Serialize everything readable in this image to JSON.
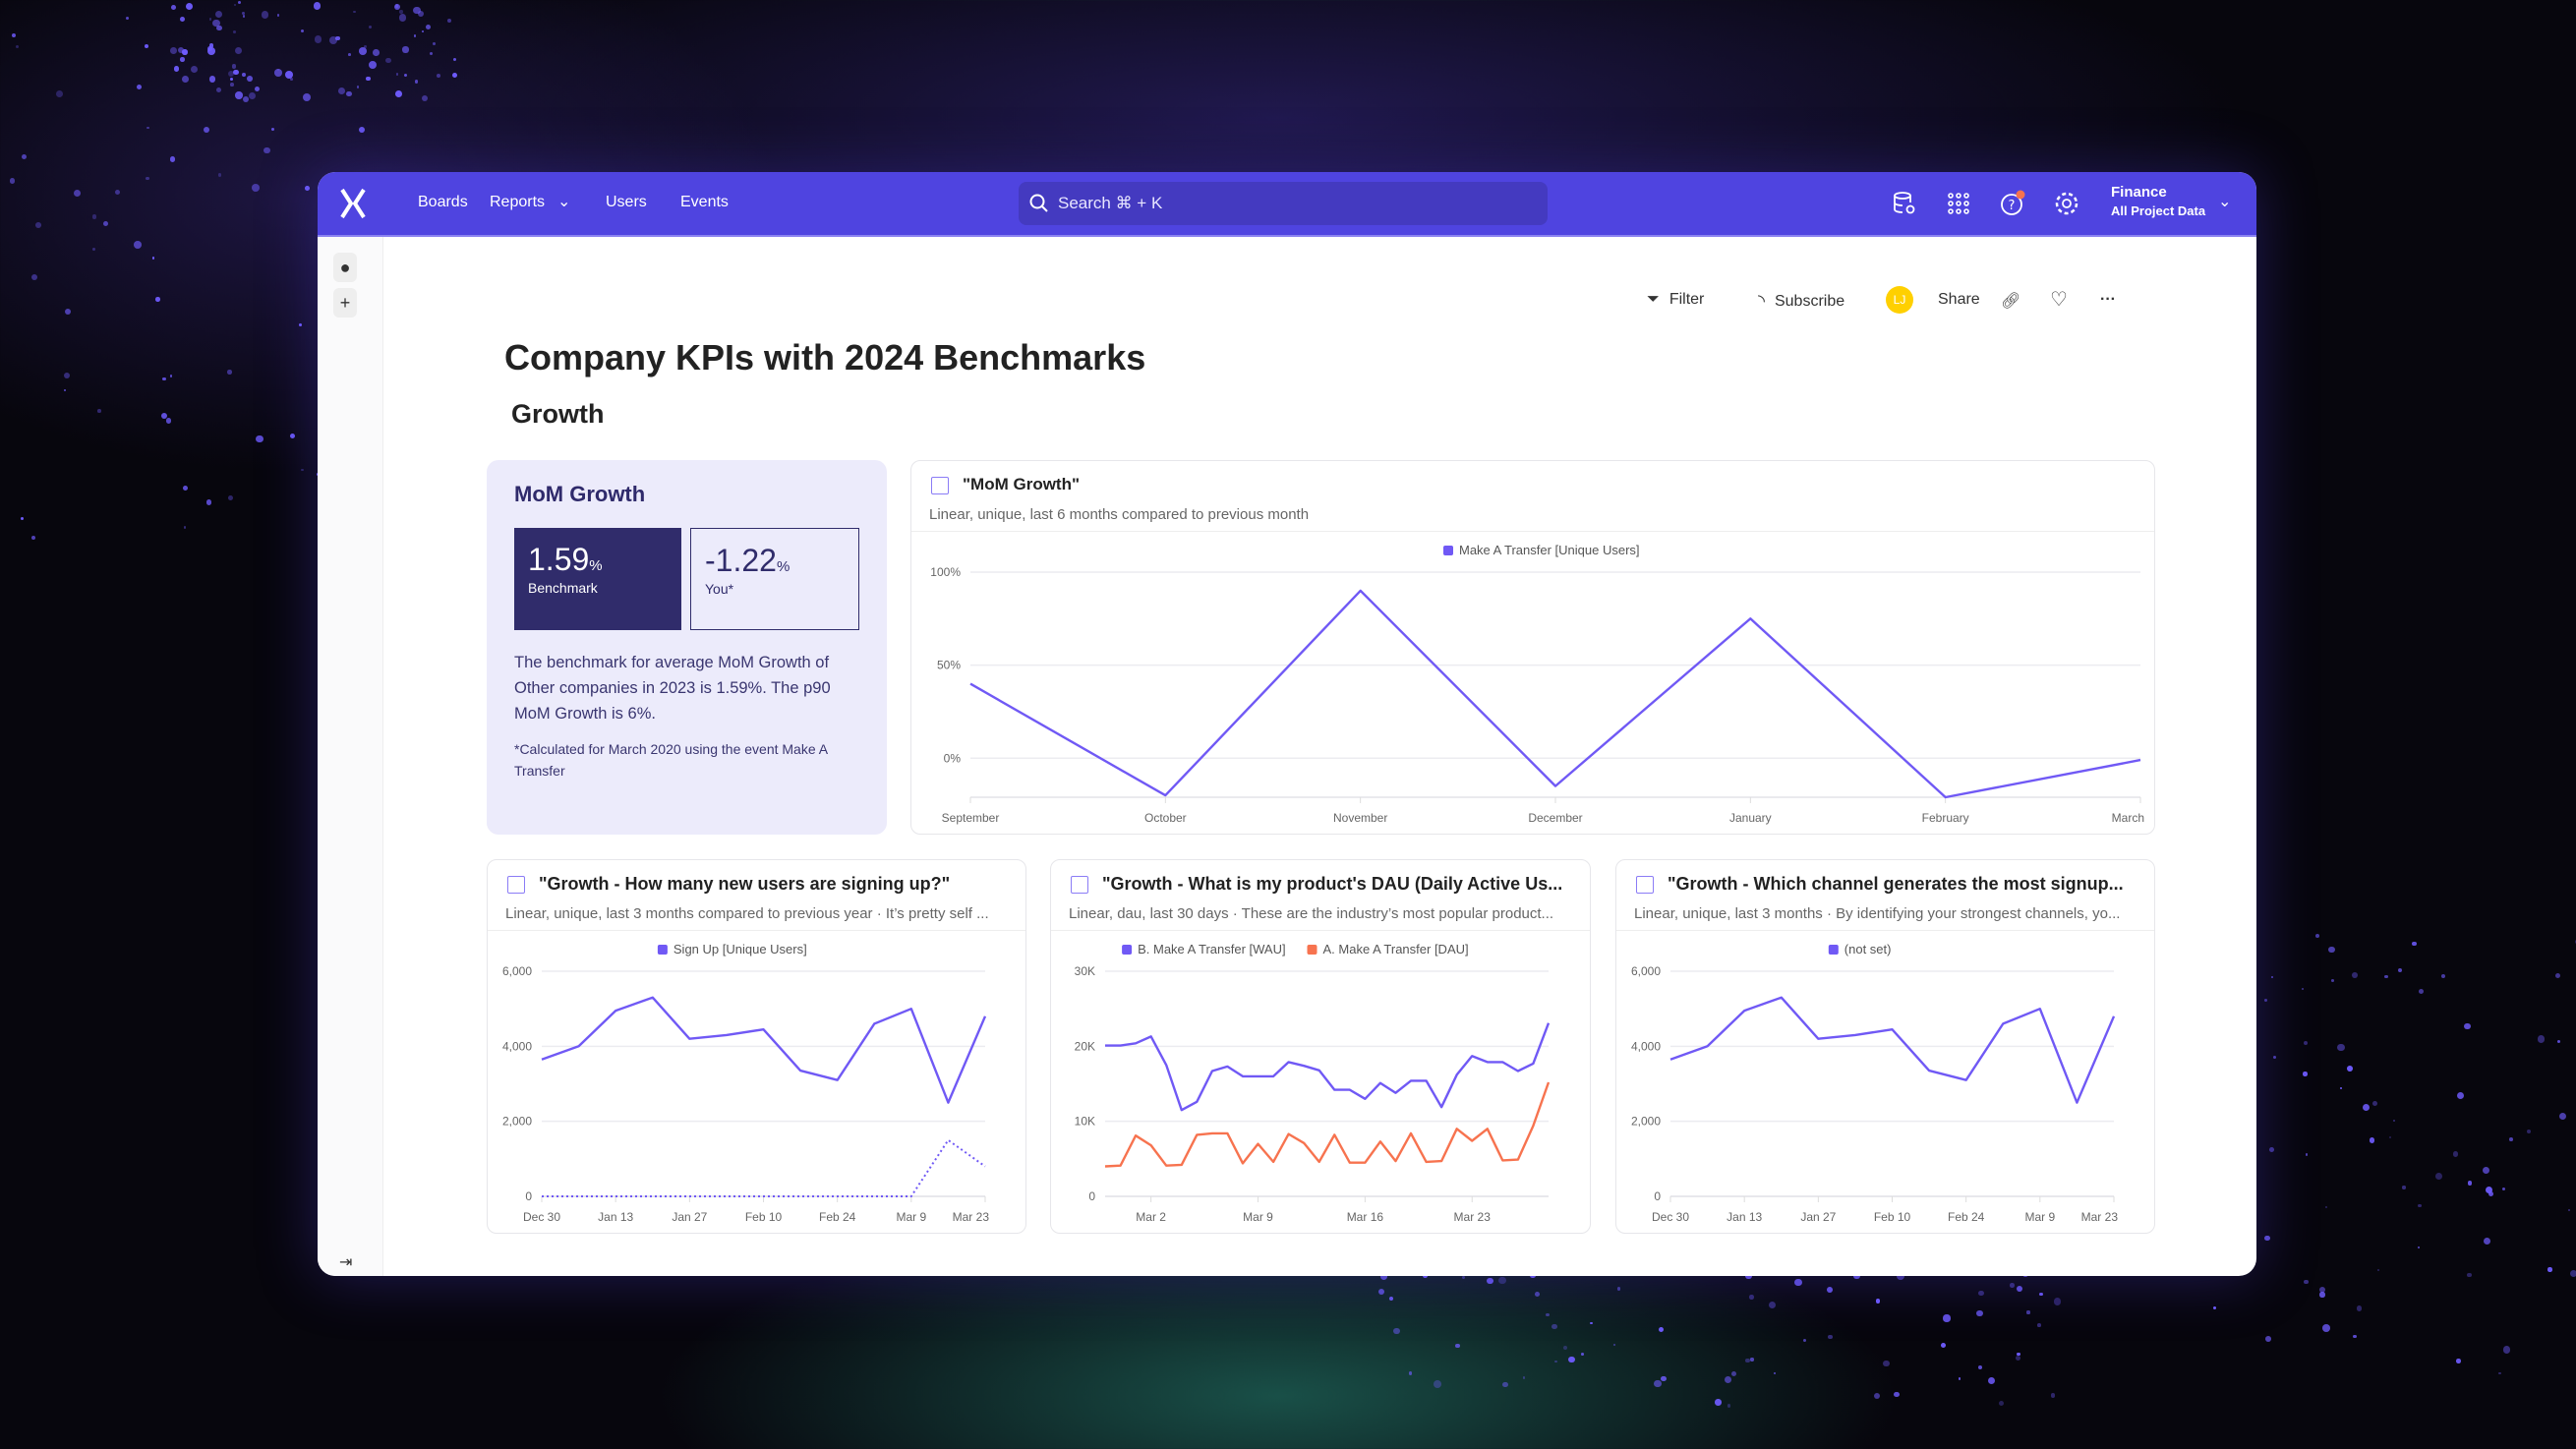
{
  "topbar": {
    "logo": "mixpanel-logo",
    "nav": [
      "Boards",
      "Reports",
      "Users",
      "Events"
    ],
    "search_placeholder": "Search ⌘ + K",
    "project_name": "Finance",
    "project_scope": "All Project Data",
    "accent": "#4f44e0"
  },
  "toolbar": {
    "filter": "Filter",
    "subscribe": "Subscribe",
    "avatar_initials": "LJ",
    "share": "Share"
  },
  "page": {
    "title": "Company KPIs with 2024 Benchmarks",
    "section": "Growth"
  },
  "benchmark_card": {
    "title": "MoM Growth",
    "benchmark_value": "1.59",
    "benchmark_unit": "%",
    "benchmark_label": "Benchmark",
    "you_value": "-1.22",
    "you_unit": "%",
    "you_label": "You*",
    "description": "The benchmark for average MoM Growth of Other companies in 2023 is 1.59%. The p90 MoM Growth is 6%.",
    "footnote": "*Calculated for March 2020 using the event Make A Transfer"
  },
  "chart_data": [
    {
      "id": "mom",
      "type": "line",
      "title": "\"MoM Growth\"",
      "subtitle": "Linear, unique, last 6 months compared to previous month",
      "x": [
        "September",
        "October",
        "November",
        "December",
        "January",
        "February",
        "March"
      ],
      "xticks": [
        "September",
        "October",
        "November",
        "December",
        "January",
        "February",
        "March"
      ],
      "yticks": [
        0,
        50,
        100
      ],
      "ytick_labels": [
        "0%",
        "50%",
        "100%"
      ],
      "ylim": [
        -21,
        100
      ],
      "grid": true,
      "legend": "top",
      "series": [
        {
          "name": "Make A Transfer [Unique Users]",
          "color": "#7059f5",
          "values": [
            40,
            -20,
            90,
            -15,
            75,
            -21,
            -1
          ]
        }
      ]
    },
    {
      "id": "signup",
      "type": "line",
      "title": "\"Growth - How many new users are signing up?\"",
      "subtitle": "Linear, unique, last 3 months compared to previous year · It’s pretty self ...",
      "x": [
        "Dec 30",
        "Jan 6",
        "Jan 13",
        "Jan 20",
        "Jan 27",
        "Feb 3",
        "Feb 10",
        "Feb 17",
        "Feb 24",
        "Mar 2",
        "Mar 9",
        "Mar 16",
        "Mar 23"
      ],
      "xticks": [
        "Dec 30",
        "Jan 13",
        "Jan 27",
        "Feb 10",
        "Feb 24",
        "Mar 9",
        "Mar 23"
      ],
      "yticks": [
        0,
        2000,
        4000,
        6000
      ],
      "ytick_labels": [
        "0",
        "2,000",
        "4,000",
        "6,000"
      ],
      "ylim": [
        0,
        6000
      ],
      "grid": true,
      "legend": "top",
      "series": [
        {
          "name": "Sign Up [Unique Users]",
          "color": "#7059f5",
          "values": [
            3650,
            4000,
            4950,
            5300,
            4200,
            4300,
            4450,
            3350,
            3100,
            4600,
            5000,
            2500,
            4800
          ]
        },
        {
          "color": "#7059f5",
          "dashed": true,
          "values": [
            0,
            0,
            0,
            0,
            0,
            0,
            0,
            0,
            0,
            0,
            0,
            1500,
            800
          ]
        }
      ]
    },
    {
      "id": "dau",
      "type": "line",
      "title": "\"Growth - What is my product's DAU (Daily Active Us...",
      "subtitle": "Linear, dau, last 30 days · These are the industry’s most popular product...",
      "x": [
        "Feb 28",
        "Feb 29",
        "Mar 1",
        "Mar 2",
        "Mar 3",
        "Mar 4",
        "Mar 5",
        "Mar 6",
        "Mar 7",
        "Mar 8",
        "Mar 9",
        "Mar 10",
        "Mar 11",
        "Mar 12",
        "Mar 13",
        "Mar 14",
        "Mar 15",
        "Mar 16",
        "Mar 17",
        "Mar 18",
        "Mar 19",
        "Mar 20",
        "Mar 21",
        "Mar 22",
        "Mar 23",
        "Mar 24",
        "Mar 25",
        "Mar 26",
        "Mar 27",
        "Mar 28"
      ],
      "xticks": [
        "Mar 2",
        "Mar 9",
        "Mar 16",
        "Mar 23"
      ],
      "yticks": [
        0,
        10000,
        20000,
        30000
      ],
      "ytick_labels": [
        "0",
        "10K",
        "20K",
        "30K"
      ],
      "ylim": [
        0,
        30000
      ],
      "grid": true,
      "legend": "top",
      "series": [
        {
          "name": "B. Make A Transfer [WAU]",
          "color": "#7059f5",
          "values": [
            20100,
            20100,
            20400,
            21300,
            17500,
            11500,
            12600,
            16700,
            17300,
            16000,
            16000,
            16000,
            17900,
            17400,
            16800,
            14200,
            14200,
            13000,
            15100,
            13800,
            15400,
            15400,
            11900,
            16200,
            18700,
            17900,
            17900,
            16700,
            17700,
            23100
          ]
        },
        {
          "name": "A. Make A Transfer [DAU]",
          "color": "#f7734f",
          "values": [
            4000,
            4100,
            8100,
            6800,
            4100,
            4200,
            8200,
            8400,
            8400,
            4400,
            7000,
            4600,
            8300,
            7100,
            4600,
            8200,
            4500,
            4500,
            7300,
            4700,
            8400,
            4600,
            4700,
            9000,
            7400,
            9000,
            4800,
            4900,
            9400,
            15200
          ]
        }
      ]
    },
    {
      "id": "channel",
      "type": "line",
      "title": "\"Growth - Which channel generates the most signup...",
      "subtitle": "Linear, unique, last 3 months · By identifying your strongest channels, yo...",
      "x": [
        "Dec 30",
        "Jan 6",
        "Jan 13",
        "Jan 20",
        "Jan 27",
        "Feb 3",
        "Feb 10",
        "Feb 17",
        "Feb 24",
        "Mar 2",
        "Mar 9",
        "Mar 16",
        "Mar 23"
      ],
      "xticks": [
        "Dec 30",
        "Jan 13",
        "Jan 27",
        "Feb 10",
        "Feb 24",
        "Mar 9",
        "Mar 23"
      ],
      "yticks": [
        0,
        2000,
        4000,
        6000
      ],
      "ytick_labels": [
        "0",
        "2,000",
        "4,000",
        "6,000"
      ],
      "ylim": [
        0,
        6000
      ],
      "grid": true,
      "legend": "top",
      "series": [
        {
          "name": "(not set)",
          "color": "#7059f5",
          "values": [
            3650,
            4000,
            4950,
            5300,
            4200,
            4300,
            4450,
            3350,
            3100,
            4600,
            5000,
            2500,
            4800
          ]
        }
      ]
    }
  ]
}
